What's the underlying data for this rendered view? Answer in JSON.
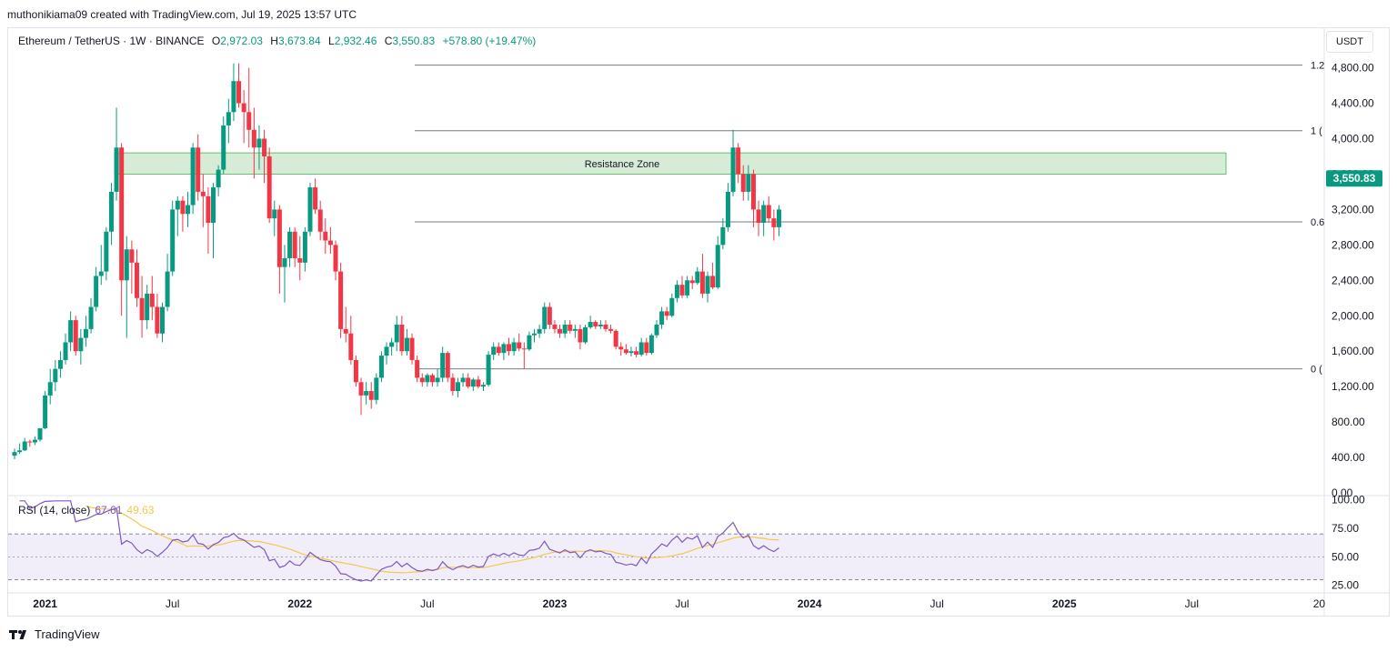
{
  "header": {
    "created_by": "muthonikiama09 created with TradingView.com, Jul 19, 2025 13:57 UTC"
  },
  "legend": {
    "symbol": "Ethereum / TetherUS · 1W · BINANCE",
    "open_label": "O",
    "open": "2,972.03",
    "high_label": "H",
    "high": "3,673.84",
    "low_label": "L",
    "low": "2,932.46",
    "close_label": "C",
    "close": "3,550.83",
    "change": "+578.80 (+19.47%)"
  },
  "currency_button": "USDT",
  "last_price_tag": "3,550.83",
  "resistance_label": "Resistance Zone",
  "fib_labels": [
    "1.2",
    "1 (",
    "0.6",
    "0 ("
  ],
  "rsi": {
    "label": "RSI (14, close)",
    "value": "67.61",
    "ma_value": "49.63",
    "ticks": [
      "100.00",
      "75.00",
      "50.00",
      "25.00"
    ]
  },
  "footer": {
    "brand": "TradingView"
  },
  "colors": {
    "up": "#089981",
    "down": "#f23645",
    "rsi": "#7e57c2",
    "rsi_ma": "#f2c94c",
    "zone": "#c8e6c9"
  },
  "chart_data": {
    "type": "candlestick",
    "pair": "ETH/USDT",
    "interval": "1W",
    "ylim": [
      0,
      4950
    ],
    "y_ticks": [
      "4,800.00",
      "4,400.00",
      "4,000.00",
      "3,600.00",
      "3,200.00",
      "2,800.00",
      "2,400.00",
      "2,000.00",
      "1,600.00",
      "1,200.00",
      "800.00",
      "400.00",
      "0.00"
    ],
    "y_tick_values": [
      4800,
      4400,
      4000,
      3600,
      3200,
      2800,
      2400,
      2000,
      1600,
      1200,
      800,
      400,
      0
    ],
    "x_ticks": [
      "2021",
      "Jul",
      "2022",
      "Jul",
      "2023",
      "Jul",
      "2024",
      "Jul",
      "2025",
      "Jul",
      "20"
    ],
    "x_tick_values": [
      2021.0,
      2021.5,
      2022.0,
      2022.5,
      2023.0,
      2023.5,
      2024.0,
      2024.5,
      2025.0,
      2025.5,
      2026.0
    ],
    "resistance_zone": [
      3600,
      3840
    ],
    "fib_levels": [
      {
        "label": "1.2",
        "price": 4830
      },
      {
        "label": "1",
        "price": 4090
      },
      {
        "label": "0.6",
        "price": 3060
      },
      {
        "label": "0",
        "price": 1400
      }
    ],
    "candles": [
      {
        "t": 2020.88,
        "o": 420,
        "h": 500,
        "l": 380,
        "c": 460
      },
      {
        "t": 2020.9,
        "o": 460,
        "h": 560,
        "l": 440,
        "c": 480
      },
      {
        "t": 2020.92,
        "o": 480,
        "h": 620,
        "l": 470,
        "c": 580
      },
      {
        "t": 2020.94,
        "o": 580,
        "h": 600,
        "l": 520,
        "c": 570
      },
      {
        "t": 2020.96,
        "o": 570,
        "h": 640,
        "l": 540,
        "c": 600
      },
      {
        "t": 2020.98,
        "o": 600,
        "h": 720,
        "l": 580,
        "c": 730
      },
      {
        "t": 2021.0,
        "o": 730,
        "h": 1150,
        "l": 720,
        "c": 1100
      },
      {
        "t": 2021.02,
        "o": 1100,
        "h": 1400,
        "l": 1000,
        "c": 1250
      },
      {
        "t": 2021.04,
        "o": 1250,
        "h": 1500,
        "l": 1150,
        "c": 1400
      },
      {
        "t": 2021.06,
        "o": 1400,
        "h": 1600,
        "l": 1300,
        "c": 1500
      },
      {
        "t": 2021.08,
        "o": 1500,
        "h": 1800,
        "l": 1450,
        "c": 1700
      },
      {
        "t": 2021.1,
        "o": 1700,
        "h": 2050,
        "l": 1600,
        "c": 1950
      },
      {
        "t": 2021.12,
        "o": 1950,
        "h": 2000,
        "l": 1550,
        "c": 1600
      },
      {
        "t": 2021.14,
        "o": 1600,
        "h": 1850,
        "l": 1450,
        "c": 1750
      },
      {
        "t": 2021.16,
        "o": 1750,
        "h": 2000,
        "l": 1650,
        "c": 1850
      },
      {
        "t": 2021.18,
        "o": 1850,
        "h": 2200,
        "l": 1800,
        "c": 2100
      },
      {
        "t": 2021.2,
        "o": 2100,
        "h": 2550,
        "l": 2050,
        "c": 2450
      },
      {
        "t": 2021.22,
        "o": 2450,
        "h": 2800,
        "l": 2350,
        "c": 2500
      },
      {
        "t": 2021.24,
        "o": 2500,
        "h": 3000,
        "l": 2400,
        "c": 2950
      },
      {
        "t": 2021.26,
        "o": 2950,
        "h": 3500,
        "l": 2800,
        "c": 3400
      },
      {
        "t": 2021.28,
        "o": 3400,
        "h": 4350,
        "l": 3300,
        "c": 3900
      },
      {
        "t": 2021.3,
        "o": 3900,
        "h": 3950,
        "l": 2000,
        "c": 2400
      },
      {
        "t": 2021.32,
        "o": 2400,
        "h": 2900,
        "l": 1750,
        "c": 2750
      },
      {
        "t": 2021.34,
        "o": 2750,
        "h": 2850,
        "l": 2250,
        "c": 2600
      },
      {
        "t": 2021.36,
        "o": 2600,
        "h": 2750,
        "l": 2100,
        "c": 2200
      },
      {
        "t": 2021.38,
        "o": 2200,
        "h": 2450,
        "l": 1750,
        "c": 1950
      },
      {
        "t": 2021.4,
        "o": 1950,
        "h": 2350,
        "l": 1850,
        "c": 2250
      },
      {
        "t": 2021.42,
        "o": 2250,
        "h": 2450,
        "l": 1950,
        "c": 2100
      },
      {
        "t": 2021.44,
        "o": 2100,
        "h": 2250,
        "l": 1750,
        "c": 1800
      },
      {
        "t": 2021.46,
        "o": 1800,
        "h": 2150,
        "l": 1700,
        "c": 2100
      },
      {
        "t": 2021.48,
        "o": 2100,
        "h": 2700,
        "l": 2050,
        "c": 2500
      },
      {
        "t": 2021.5,
        "o": 2500,
        "h": 3300,
        "l": 2450,
        "c": 3200
      },
      {
        "t": 2021.52,
        "o": 3200,
        "h": 3350,
        "l": 2900,
        "c": 3300
      },
      {
        "t": 2021.54,
        "o": 3300,
        "h": 3350,
        "l": 2950,
        "c": 3150
      },
      {
        "t": 2021.56,
        "o": 3150,
        "h": 3400,
        "l": 3000,
        "c": 3250
      },
      {
        "t": 2021.58,
        "o": 3250,
        "h": 3950,
        "l": 3150,
        "c": 3900
      },
      {
        "t": 2021.6,
        "o": 3900,
        "h": 4050,
        "l": 3300,
        "c": 3400
      },
      {
        "t": 2021.62,
        "o": 3400,
        "h": 3600,
        "l": 3000,
        "c": 3350
      },
      {
        "t": 2021.64,
        "o": 3350,
        "h": 3450,
        "l": 2700,
        "c": 3050
      },
      {
        "t": 2021.66,
        "o": 3050,
        "h": 3500,
        "l": 2650,
        "c": 3450
      },
      {
        "t": 2021.68,
        "o": 3450,
        "h": 3700,
        "l": 3350,
        "c": 3650
      },
      {
        "t": 2021.7,
        "o": 3650,
        "h": 4250,
        "l": 3600,
        "c": 4150
      },
      {
        "t": 2021.72,
        "o": 4150,
        "h": 4450,
        "l": 3950,
        "c": 4300
      },
      {
        "t": 2021.74,
        "o": 4300,
        "h": 4850,
        "l": 4200,
        "c": 4650
      },
      {
        "t": 2021.76,
        "o": 4650,
        "h": 4850,
        "l": 4350,
        "c": 4400
      },
      {
        "t": 2021.78,
        "o": 4400,
        "h": 4550,
        "l": 3950,
        "c": 4300
      },
      {
        "t": 2021.8,
        "o": 4300,
        "h": 4800,
        "l": 3900,
        "c": 4100
      },
      {
        "t": 2021.82,
        "o": 4100,
        "h": 4350,
        "l": 3550,
        "c": 3900
      },
      {
        "t": 2021.84,
        "o": 3900,
        "h": 4150,
        "l": 3650,
        "c": 4000
      },
      {
        "t": 2021.86,
        "o": 4000,
        "h": 4100,
        "l": 3500,
        "c": 3800
      },
      {
        "t": 2021.88,
        "o": 3800,
        "h": 3900,
        "l": 3050,
        "c": 3100
      },
      {
        "t": 2021.9,
        "o": 3100,
        "h": 3300,
        "l": 2900,
        "c": 3200
      },
      {
        "t": 2021.92,
        "o": 3200,
        "h": 3250,
        "l": 2250,
        "c": 2550
      },
      {
        "t": 2021.94,
        "o": 2550,
        "h": 2800,
        "l": 2150,
        "c": 2650
      },
      {
        "t": 2021.96,
        "o": 2650,
        "h": 3000,
        "l": 2550,
        "c": 2950
      },
      {
        "t": 2021.98,
        "o": 2950,
        "h": 3000,
        "l": 2550,
        "c": 2650
      },
      {
        "t": 2022.0,
        "o": 2650,
        "h": 2900,
        "l": 2400,
        "c": 2600
      },
      {
        "t": 2022.02,
        "o": 2600,
        "h": 3000,
        "l": 2500,
        "c": 2950
      },
      {
        "t": 2022.04,
        "o": 2950,
        "h": 3500,
        "l": 2900,
        "c": 3450
      },
      {
        "t": 2022.06,
        "o": 3450,
        "h": 3550,
        "l": 3150,
        "c": 3200
      },
      {
        "t": 2022.08,
        "o": 3200,
        "h": 3300,
        "l": 2850,
        "c": 2950
      },
      {
        "t": 2022.1,
        "o": 2950,
        "h": 3100,
        "l": 2700,
        "c": 2850
      },
      {
        "t": 2022.12,
        "o": 2850,
        "h": 3000,
        "l": 2700,
        "c": 2800
      },
      {
        "t": 2022.14,
        "o": 2800,
        "h": 2850,
        "l": 2400,
        "c": 2500
      },
      {
        "t": 2022.16,
        "o": 2500,
        "h": 2600,
        "l": 1750,
        "c": 1850
      },
      {
        "t": 2022.18,
        "o": 1850,
        "h": 2100,
        "l": 1700,
        "c": 1800
      },
      {
        "t": 2022.2,
        "o": 1800,
        "h": 2000,
        "l": 1450,
        "c": 1500
      },
      {
        "t": 2022.22,
        "o": 1500,
        "h": 1550,
        "l": 1200,
        "c": 1250
      },
      {
        "t": 2022.24,
        "o": 1250,
        "h": 1300,
        "l": 880,
        "c": 1100
      },
      {
        "t": 2022.26,
        "o": 1100,
        "h": 1250,
        "l": 1000,
        "c": 1150
      },
      {
        "t": 2022.28,
        "o": 1150,
        "h": 1250,
        "l": 950,
        "c": 1050
      },
      {
        "t": 2022.3,
        "o": 1050,
        "h": 1350,
        "l": 1000,
        "c": 1300
      },
      {
        "t": 2022.32,
        "o": 1300,
        "h": 1600,
        "l": 1250,
        "c": 1550
      },
      {
        "t": 2022.34,
        "o": 1550,
        "h": 1700,
        "l": 1450,
        "c": 1650
      },
      {
        "t": 2022.36,
        "o": 1650,
        "h": 1750,
        "l": 1550,
        "c": 1700
      },
      {
        "t": 2022.38,
        "o": 1700,
        "h": 2000,
        "l": 1600,
        "c": 1900
      },
      {
        "t": 2022.4,
        "o": 1900,
        "h": 2000,
        "l": 1550,
        "c": 1600
      },
      {
        "t": 2022.42,
        "o": 1600,
        "h": 1850,
        "l": 1550,
        "c": 1750
      },
      {
        "t": 2022.44,
        "o": 1750,
        "h": 1800,
        "l": 1450,
        "c": 1500
      },
      {
        "t": 2022.46,
        "o": 1500,
        "h": 1550,
        "l": 1250,
        "c": 1300
      },
      {
        "t": 2022.48,
        "o": 1300,
        "h": 1350,
        "l": 1200,
        "c": 1250
      },
      {
        "t": 2022.5,
        "o": 1250,
        "h": 1350,
        "l": 1200,
        "c": 1330
      },
      {
        "t": 2022.52,
        "o": 1330,
        "h": 1350,
        "l": 1200,
        "c": 1250
      },
      {
        "t": 2022.54,
        "o": 1250,
        "h": 1400,
        "l": 1200,
        "c": 1300
      },
      {
        "t": 2022.56,
        "o": 1300,
        "h": 1650,
        "l": 1250,
        "c": 1580
      },
      {
        "t": 2022.58,
        "o": 1580,
        "h": 1600,
        "l": 1250,
        "c": 1300
      },
      {
        "t": 2022.6,
        "o": 1300,
        "h": 1350,
        "l": 1100,
        "c": 1150
      },
      {
        "t": 2022.62,
        "o": 1150,
        "h": 1300,
        "l": 1080,
        "c": 1250
      },
      {
        "t": 2022.64,
        "o": 1250,
        "h": 1350,
        "l": 1200,
        "c": 1300
      },
      {
        "t": 2022.66,
        "o": 1300,
        "h": 1350,
        "l": 1180,
        "c": 1200
      },
      {
        "t": 2022.68,
        "o": 1200,
        "h": 1300,
        "l": 1150,
        "c": 1280
      },
      {
        "t": 2022.7,
        "o": 1280,
        "h": 1320,
        "l": 1180,
        "c": 1200
      },
      {
        "t": 2022.72,
        "o": 1200,
        "h": 1250,
        "l": 1150,
        "c": 1220
      },
      {
        "t": 2022.74,
        "o": 1220,
        "h": 1600,
        "l": 1200,
        "c": 1560
      },
      {
        "t": 2022.76,
        "o": 1560,
        "h": 1700,
        "l": 1500,
        "c": 1650
      },
      {
        "t": 2022.78,
        "o": 1650,
        "h": 1700,
        "l": 1550,
        "c": 1580
      },
      {
        "t": 2022.8,
        "o": 1580,
        "h": 1700,
        "l": 1500,
        "c": 1680
      },
      {
        "t": 2022.82,
        "o": 1680,
        "h": 1750,
        "l": 1550,
        "c": 1600
      },
      {
        "t": 2022.84,
        "o": 1600,
        "h": 1750,
        "l": 1550,
        "c": 1700
      },
      {
        "t": 2022.86,
        "o": 1700,
        "h": 1800,
        "l": 1600,
        "c": 1630
      },
      {
        "t": 2022.88,
        "o": 1630,
        "h": 1700,
        "l": 1400,
        "c": 1620
      },
      {
        "t": 2022.9,
        "o": 1620,
        "h": 1820,
        "l": 1600,
        "c": 1780
      },
      {
        "t": 2022.92,
        "o": 1780,
        "h": 1850,
        "l": 1700,
        "c": 1800
      },
      {
        "t": 2022.94,
        "o": 1800,
        "h": 1900,
        "l": 1750,
        "c": 1850
      },
      {
        "t": 2022.96,
        "o": 1850,
        "h": 2150,
        "l": 1800,
        "c": 2100
      },
      {
        "t": 2022.98,
        "o": 2100,
        "h": 2150,
        "l": 1850,
        "c": 1900
      },
      {
        "t": 2023.0,
        "o": 1900,
        "h": 1950,
        "l": 1800,
        "c": 1850
      },
      {
        "t": 2023.02,
        "o": 1850,
        "h": 1900,
        "l": 1750,
        "c": 1800
      },
      {
        "t": 2023.04,
        "o": 1800,
        "h": 1950,
        "l": 1750,
        "c": 1900
      },
      {
        "t": 2023.06,
        "o": 1900,
        "h": 1950,
        "l": 1800,
        "c": 1830
      },
      {
        "t": 2023.08,
        "o": 1830,
        "h": 1900,
        "l": 1750,
        "c": 1850
      },
      {
        "t": 2023.1,
        "o": 1850,
        "h": 1900,
        "l": 1620,
        "c": 1700
      },
      {
        "t": 2023.12,
        "o": 1700,
        "h": 1900,
        "l": 1680,
        "c": 1870
      },
      {
        "t": 2023.14,
        "o": 1870,
        "h": 2000,
        "l": 1850,
        "c": 1930
      },
      {
        "t": 2023.16,
        "o": 1930,
        "h": 1950,
        "l": 1850,
        "c": 1880
      },
      {
        "t": 2023.18,
        "o": 1880,
        "h": 1950,
        "l": 1850,
        "c": 1900
      },
      {
        "t": 2023.2,
        "o": 1900,
        "h": 1950,
        "l": 1820,
        "c": 1850
      },
      {
        "t": 2023.22,
        "o": 1850,
        "h": 1900,
        "l": 1800,
        "c": 1830
      },
      {
        "t": 2023.24,
        "o": 1830,
        "h": 1850,
        "l": 1620,
        "c": 1650
      },
      {
        "t": 2023.26,
        "o": 1650,
        "h": 1700,
        "l": 1550,
        "c": 1620
      },
      {
        "t": 2023.28,
        "o": 1620,
        "h": 1680,
        "l": 1560,
        "c": 1580
      },
      {
        "t": 2023.3,
        "o": 1580,
        "h": 1650,
        "l": 1540,
        "c": 1600
      },
      {
        "t": 2023.32,
        "o": 1600,
        "h": 1650,
        "l": 1530,
        "c": 1560
      },
      {
        "t": 2023.34,
        "o": 1560,
        "h": 1750,
        "l": 1540,
        "c": 1700
      },
      {
        "t": 2023.36,
        "o": 1700,
        "h": 1750,
        "l": 1550,
        "c": 1580
      },
      {
        "t": 2023.38,
        "o": 1580,
        "h": 1800,
        "l": 1560,
        "c": 1780
      },
      {
        "t": 2023.4,
        "o": 1780,
        "h": 1950,
        "l": 1750,
        "c": 1900
      },
      {
        "t": 2023.42,
        "o": 1900,
        "h": 2100,
        "l": 1850,
        "c": 2050
      },
      {
        "t": 2023.44,
        "o": 2050,
        "h": 2100,
        "l": 1950,
        "c": 2000
      },
      {
        "t": 2023.46,
        "o": 2000,
        "h": 2250,
        "l": 1980,
        "c": 2200
      },
      {
        "t": 2023.48,
        "o": 2200,
        "h": 2400,
        "l": 2150,
        "c": 2350
      },
      {
        "t": 2023.5,
        "o": 2350,
        "h": 2450,
        "l": 2200,
        "c": 2230
      },
      {
        "t": 2023.52,
        "o": 2230,
        "h": 2450,
        "l": 2200,
        "c": 2400
      },
      {
        "t": 2023.54,
        "o": 2400,
        "h": 2450,
        "l": 2300,
        "c": 2370
      },
      {
        "t": 2023.56,
        "o": 2370,
        "h": 2550,
        "l": 2350,
        "c": 2500
      },
      {
        "t": 2023.58,
        "o": 2500,
        "h": 2700,
        "l": 2200,
        "c": 2250
      },
      {
        "t": 2023.6,
        "o": 2250,
        "h": 2500,
        "l": 2150,
        "c": 2450
      },
      {
        "t": 2023.62,
        "o": 2450,
        "h": 2600,
        "l": 2300,
        "c": 2320
      },
      {
        "t": 2023.64,
        "o": 2320,
        "h": 2900,
        "l": 2300,
        "c": 2800
      },
      {
        "t": 2023.66,
        "o": 2800,
        "h": 3100,
        "l": 2750,
        "c": 3000
      },
      {
        "t": 2023.68,
        "o": 3000,
        "h": 3500,
        "l": 2950,
        "c": 3400
      },
      {
        "t": 2023.7,
        "o": 3400,
        "h": 4100,
        "l": 3350,
        "c": 3900
      },
      {
        "t": 2023.72,
        "o": 3900,
        "h": 3950,
        "l": 3500,
        "c": 3600
      },
      {
        "t": 2023.74,
        "o": 3600,
        "h": 3700,
        "l": 3300,
        "c": 3400
      },
      {
        "t": 2023.76,
        "o": 3400,
        "h": 3700,
        "l": 3300,
        "c": 3600
      },
      {
        "t": 2023.78,
        "o": 3600,
        "h": 3650,
        "l": 3000,
        "c": 3200
      },
      {
        "t": 2023.8,
        "o": 3200,
        "h": 3300,
        "l": 2900,
        "c": 3050
      },
      {
        "t": 2023.82,
        "o": 3050,
        "h": 3300,
        "l": 2900,
        "c": 3250
      },
      {
        "t": 2023.84,
        "o": 3250,
        "h": 3350,
        "l": 3050,
        "c": 3100
      },
      {
        "t": 2023.86,
        "o": 3100,
        "h": 3200,
        "l": 2850,
        "c": 3000
      },
      {
        "t": 2023.88,
        "o": 3000,
        "h": 3250,
        "l": 2900,
        "c": 3200
      }
    ]
  }
}
